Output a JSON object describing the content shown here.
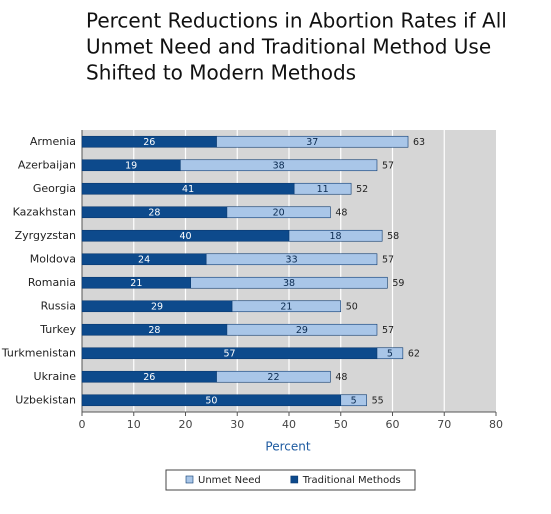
{
  "chart_data": {
    "type": "stacked-barh",
    "title": [
      "Percent Reductions in Abortion Rates if All",
      "Unmet Need and Traditional Method Use",
      "Shifted to Modern Methods"
    ],
    "x_label": "Percent",
    "categories": [
      "Armenia",
      "Azerbaijan",
      "Georgia",
      "Kazakhstan",
      "Zyrgyzstan",
      "Moldova",
      "Romania",
      "Russia",
      "Turkey",
      "Turkmenistan",
      "Ukraine",
      "Uzbekistan"
    ],
    "series": [
      {
        "name": "Unmet Need",
        "color": "#a9c6e8",
        "values": [
          37,
          38,
          11,
          20,
          18,
          33,
          38,
          21,
          29,
          5,
          22,
          5
        ]
      },
      {
        "name": "Traditional Methods",
        "color": "#0d4a8c",
        "values": [
          26,
          19,
          41,
          28,
          40,
          24,
          21,
          29,
          28,
          57,
          26,
          50
        ]
      }
    ],
    "totals": [
      63,
      57,
      52,
      48,
      58,
      57,
      59,
      50,
      57,
      62,
      48,
      55
    ],
    "xlim": [
      0,
      80
    ],
    "xticks": [
      0,
      10,
      20,
      30,
      40,
      50,
      60,
      70,
      80
    ],
    "grid": true
  }
}
